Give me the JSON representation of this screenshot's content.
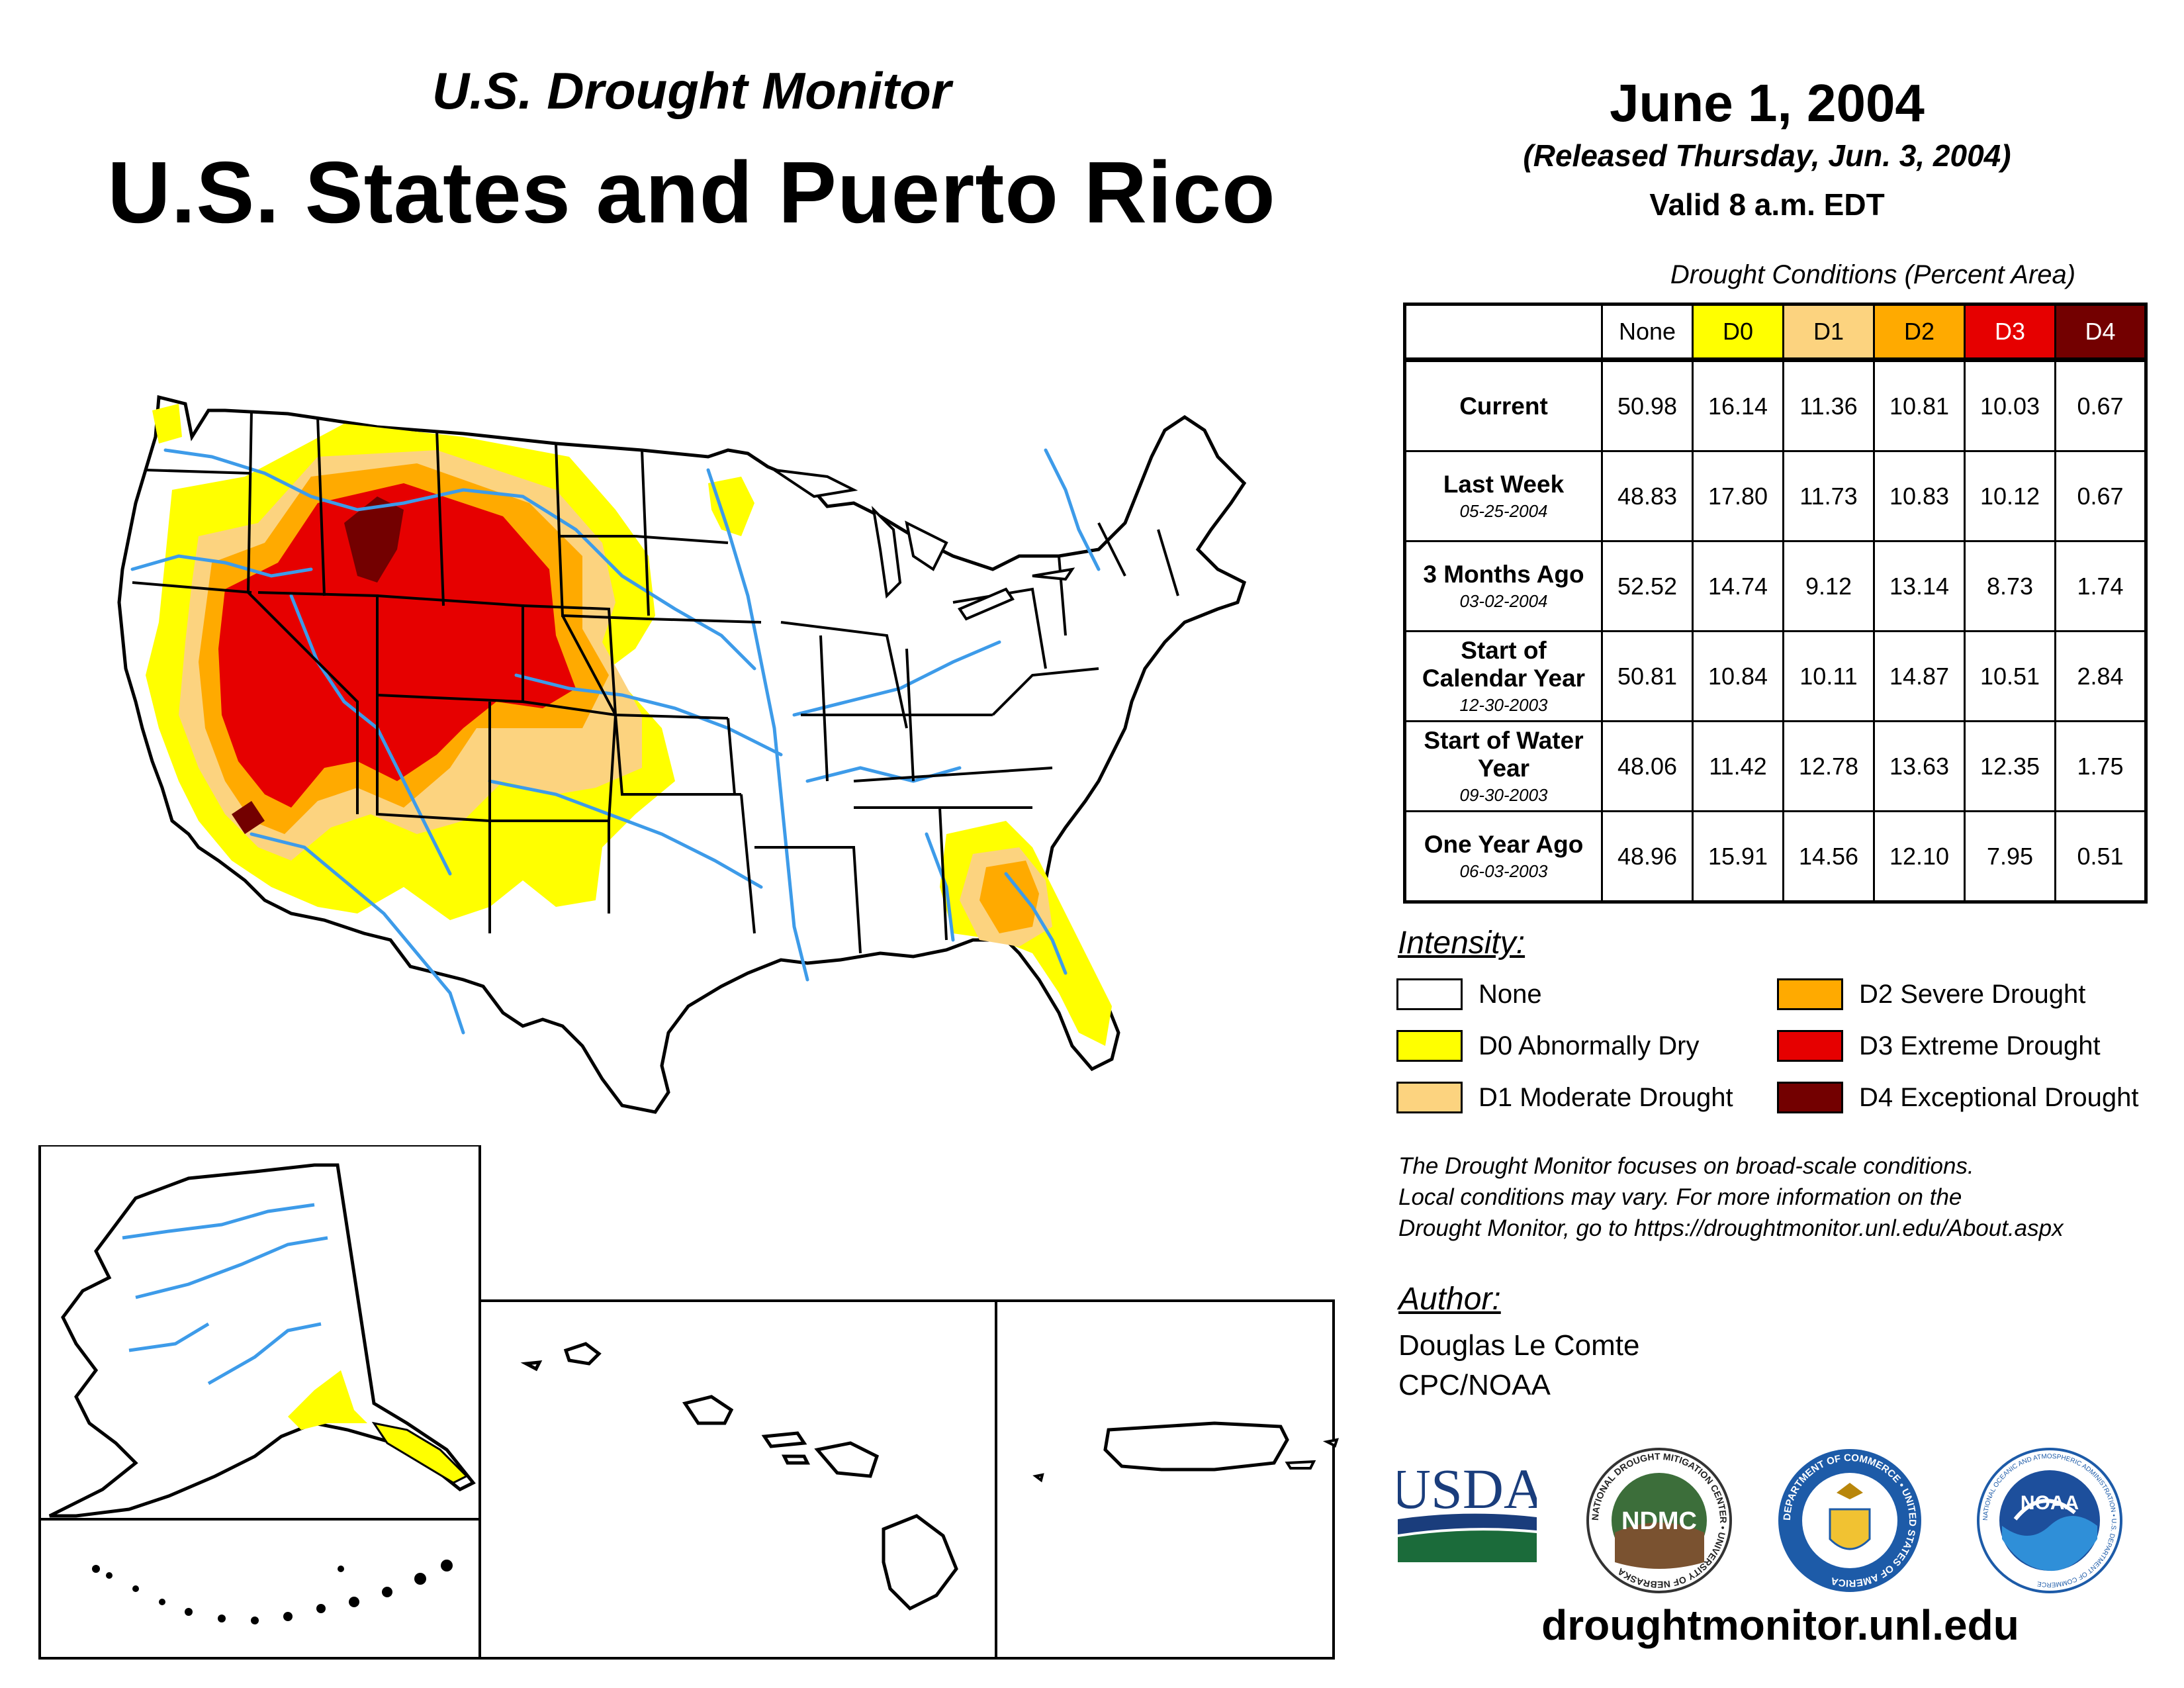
{
  "header": {
    "subtitle": "U.S. Drought Monitor",
    "title": "U.S. States and Puerto Rico",
    "date": "June 1, 2004",
    "released": "(Released Thursday, Jun. 3, 2004)",
    "valid": "Valid 8 a.m. EDT"
  },
  "table": {
    "caption": "Drought Conditions (Percent Area)",
    "columns": [
      "None",
      "D0",
      "D1",
      "D2",
      "D3",
      "D4"
    ],
    "column_colors": [
      "#ffffff",
      "#ffff00",
      "#fcd37f",
      "#ffaa00",
      "#e60000",
      "#730000"
    ],
    "column_text_colors": [
      "#000000",
      "#000000",
      "#000000",
      "#000000",
      "#ffffff",
      "#ffffff"
    ],
    "rows": [
      {
        "label": "Current",
        "date": "",
        "values": [
          "50.98",
          "16.14",
          "11.36",
          "10.81",
          "10.03",
          "0.67"
        ]
      },
      {
        "label": "Last Week",
        "date": "05-25-2004",
        "values": [
          "48.83",
          "17.80",
          "11.73",
          "10.83",
          "10.12",
          "0.67"
        ]
      },
      {
        "label": "3 Months Ago",
        "date": "03-02-2004",
        "values": [
          "52.52",
          "14.74",
          "9.12",
          "13.14",
          "8.73",
          "1.74"
        ]
      },
      {
        "label": "Start of Calendar Year",
        "date": "12-30-2003",
        "values": [
          "50.81",
          "10.84",
          "10.11",
          "14.87",
          "10.51",
          "2.84"
        ]
      },
      {
        "label": "Start of Water Year",
        "date": "09-30-2003",
        "values": [
          "48.06",
          "11.42",
          "12.78",
          "13.63",
          "12.35",
          "1.75"
        ]
      },
      {
        "label": "One Year Ago",
        "date": "06-03-2003",
        "values": [
          "48.96",
          "15.91",
          "14.56",
          "12.10",
          "7.95",
          "0.51"
        ]
      }
    ]
  },
  "legend": {
    "heading": "Intensity:",
    "items": [
      {
        "label": "None",
        "color": "#ffffff"
      },
      {
        "label": "D0 Abnormally Dry",
        "color": "#ffff00"
      },
      {
        "label": "D1 Moderate Drought",
        "color": "#fcd37f"
      },
      {
        "label": "D2 Severe Drought",
        "color": "#ffaa00"
      },
      {
        "label": "D3 Extreme Drought",
        "color": "#e60000"
      },
      {
        "label": "D4 Exceptional Drought",
        "color": "#730000"
      }
    ]
  },
  "disclaimer": [
    "The Drought Monitor focuses on broad-scale conditions.",
    "Local conditions may vary. For more information on the",
    "Drought Monitor, go to https://droughtmonitor.unl.edu/About.aspx"
  ],
  "author": {
    "heading": "Author:",
    "name": "Douglas Le Comte",
    "org": "CPC/NOAA"
  },
  "logos": {
    "usda": "USDA",
    "ndmc": "NDMC",
    "ndmc_ring": "NATIONAL DROUGHT MITIGATION CENTER • UNIVERSITY OF NEBRASKA",
    "doc_ring": "DEPARTMENT OF COMMERCE • UNITED STATES OF AMERICA",
    "noaa": "NOAA",
    "noaa_ring": "NATIONAL OCEANIC AND ATMOSPHERIC ADMINISTRATION • U.S. DEPARTMENT OF COMMERCE"
  },
  "website": "droughtmonitor.unl.edu",
  "map_colors": {
    "d0": "#ffff00",
    "d1": "#fcd37f",
    "d2": "#ffaa00",
    "d3": "#e60000",
    "d4": "#730000",
    "river": "#3d9be9",
    "border": "#000000"
  }
}
